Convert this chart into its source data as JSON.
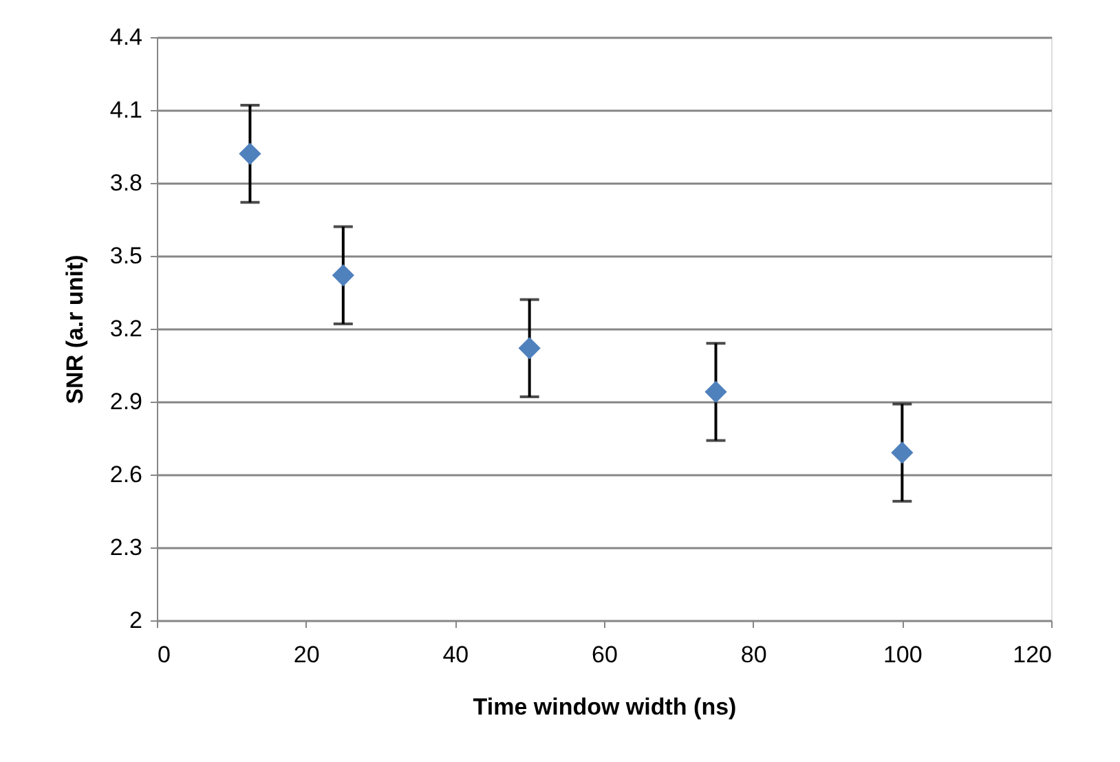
{
  "chart_data": {
    "type": "scatter",
    "xlabel": "Time window width (ns)",
    "ylabel": "SNR (a.r unit)",
    "x": [
      12.5,
      25,
      50,
      75,
      100
    ],
    "series": [
      {
        "color": "#4f81bd",
        "values": [
          3.92,
          3.42,
          3.12,
          2.94,
          2.69
        ],
        "errors": [
          0.2,
          0.2,
          0.2,
          0.2,
          0.2
        ]
      }
    ],
    "xlim": [
      0,
      120
    ],
    "xticks": [
      0,
      20,
      40,
      60,
      80,
      100,
      120
    ],
    "ylim": [
      2,
      4.4
    ],
    "yticks": [
      2,
      2.3,
      2.6,
      2.9,
      3.2,
      3.5,
      3.8,
      4.1,
      4.4
    ],
    "grid": "y",
    "marker": "diamond"
  }
}
